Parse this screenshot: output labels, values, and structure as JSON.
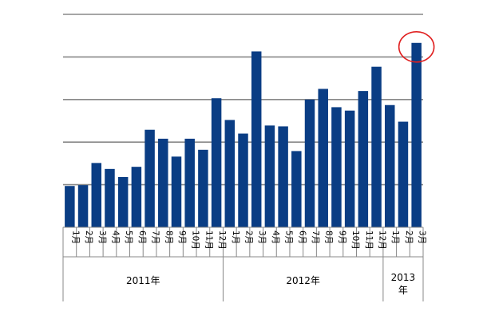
{
  "chart_data": {
    "type": "bar",
    "title": "",
    "xlabel": "",
    "ylabel": "",
    "ylim": [
      0,
      5
    ],
    "grid": true,
    "categories": [
      "1月",
      "2月",
      "3月",
      "4月",
      "5月",
      "6月",
      "7月",
      "8月",
      "9月",
      "10月",
      "11月",
      "12月",
      "1月",
      "2月",
      "3月",
      "4月",
      "5月",
      "6月",
      "7月",
      "8月",
      "9月",
      "10月",
      "11月",
      "12月",
      "1月",
      "2月",
      "3月"
    ],
    "values": [
      0.97,
      0.99,
      1.51,
      1.37,
      1.18,
      1.42,
      2.29,
      2.08,
      1.66,
      2.08,
      1.82,
      3.03,
      2.52,
      2.2,
      4.13,
      2.39,
      2.37,
      1.79,
      3.0,
      3.25,
      2.82,
      2.74,
      3.2,
      3.77,
      2.87,
      2.48,
      4.33
    ],
    "year_groups": [
      {
        "label": "2011年",
        "count": 12
      },
      {
        "label": "2012年",
        "count": 12
      },
      {
        "label": "2013\n年",
        "count": 3
      }
    ],
    "bar_color": "#0a3d84",
    "grid_color": "#888888",
    "highlight": {
      "index": 26,
      "shape": "circle",
      "color": "#e02020"
    }
  }
}
